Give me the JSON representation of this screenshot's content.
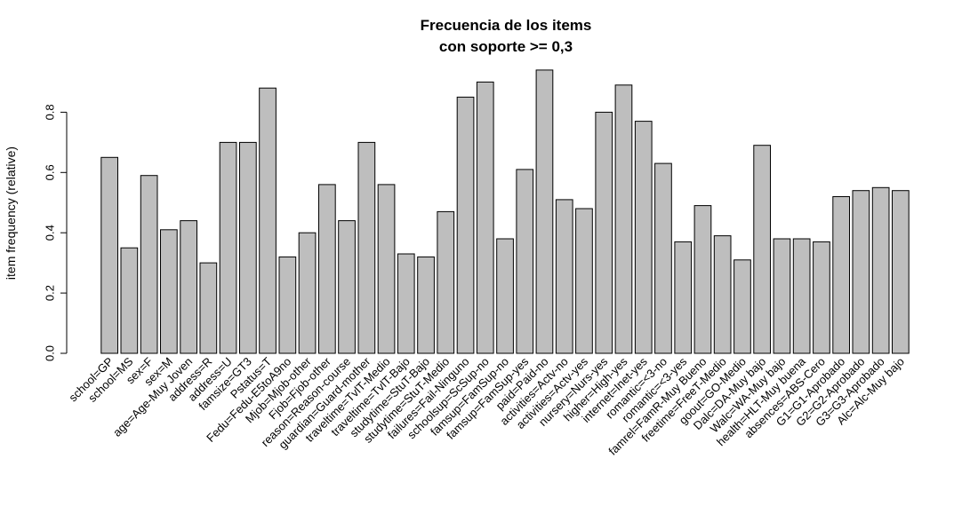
{
  "chart_data": {
    "type": "bar",
    "title": [
      "Frecuencia de los items",
      "con soporte >= 0,3"
    ],
    "xlabel": "",
    "ylabel": "item frequency (relative)",
    "ylim": [
      0,
      0.95
    ],
    "yticks": [
      "0.0",
      "0.2",
      "0.4",
      "0.6",
      "0.8"
    ],
    "ytick_values": [
      0.0,
      0.2,
      0.4,
      0.6,
      0.8
    ],
    "bar_color": "#bebebe",
    "grid": false,
    "categories": [
      "school=GP",
      "school=MS",
      "sex=F",
      "sex=M",
      "age=Age-Muy Joven",
      "address=R",
      "address=U",
      "famsize=GT3",
      "Pstatus=T",
      "Fedu=Fedu-E5toA9no",
      "Mjob=Mjob-other",
      "Fjob=Fjob-other",
      "reason=Reason-course",
      "guardian=Guard-mother",
      "traveltime=TvlT-Medio",
      "traveltime=TvlT-Bajo",
      "studytime=StuT-Bajo",
      "studytime=StuT-Medio",
      "failures=Fail-Ninguno",
      "schoolsup=ScSup-no",
      "famsup=FamSup-no",
      "famsup=FamSup-yes",
      "paid=Paid-no",
      "activities=Actv-no",
      "activities=Actv-yes",
      "nursery=Nurs-yes",
      "higher=High-yes",
      "internet=Inet-yes",
      "romantic=<3-no",
      "romantic=<3-yes",
      "famrel=FamR-Muy Bueno",
      "freetime=FreeT-Medio",
      "goout=GO-Medio",
      "Dalc=DA-Muy bajo",
      "Walc=WA-Muy bajo",
      "health=HLT-Muy buena",
      "absences=ABS-Cero",
      "G1=G1-Aprobado",
      "G2=G2-Aprobado",
      "G3=G3-Aprobado",
      "Alc=Alc-Muy bajo"
    ],
    "values": [
      0.65,
      0.35,
      0.59,
      0.41,
      0.44,
      0.3,
      0.7,
      0.7,
      0.88,
      0.32,
      0.4,
      0.56,
      0.44,
      0.7,
      0.56,
      0.33,
      0.32,
      0.47,
      0.85,
      0.9,
      0.38,
      0.61,
      0.94,
      0.51,
      0.48,
      0.8,
      0.89,
      0.77,
      0.63,
      0.37,
      0.49,
      0.39,
      0.31,
      0.69,
      0.38,
      0.38,
      0.37,
      0.52,
      0.54,
      0.55,
      0.54
    ]
  }
}
